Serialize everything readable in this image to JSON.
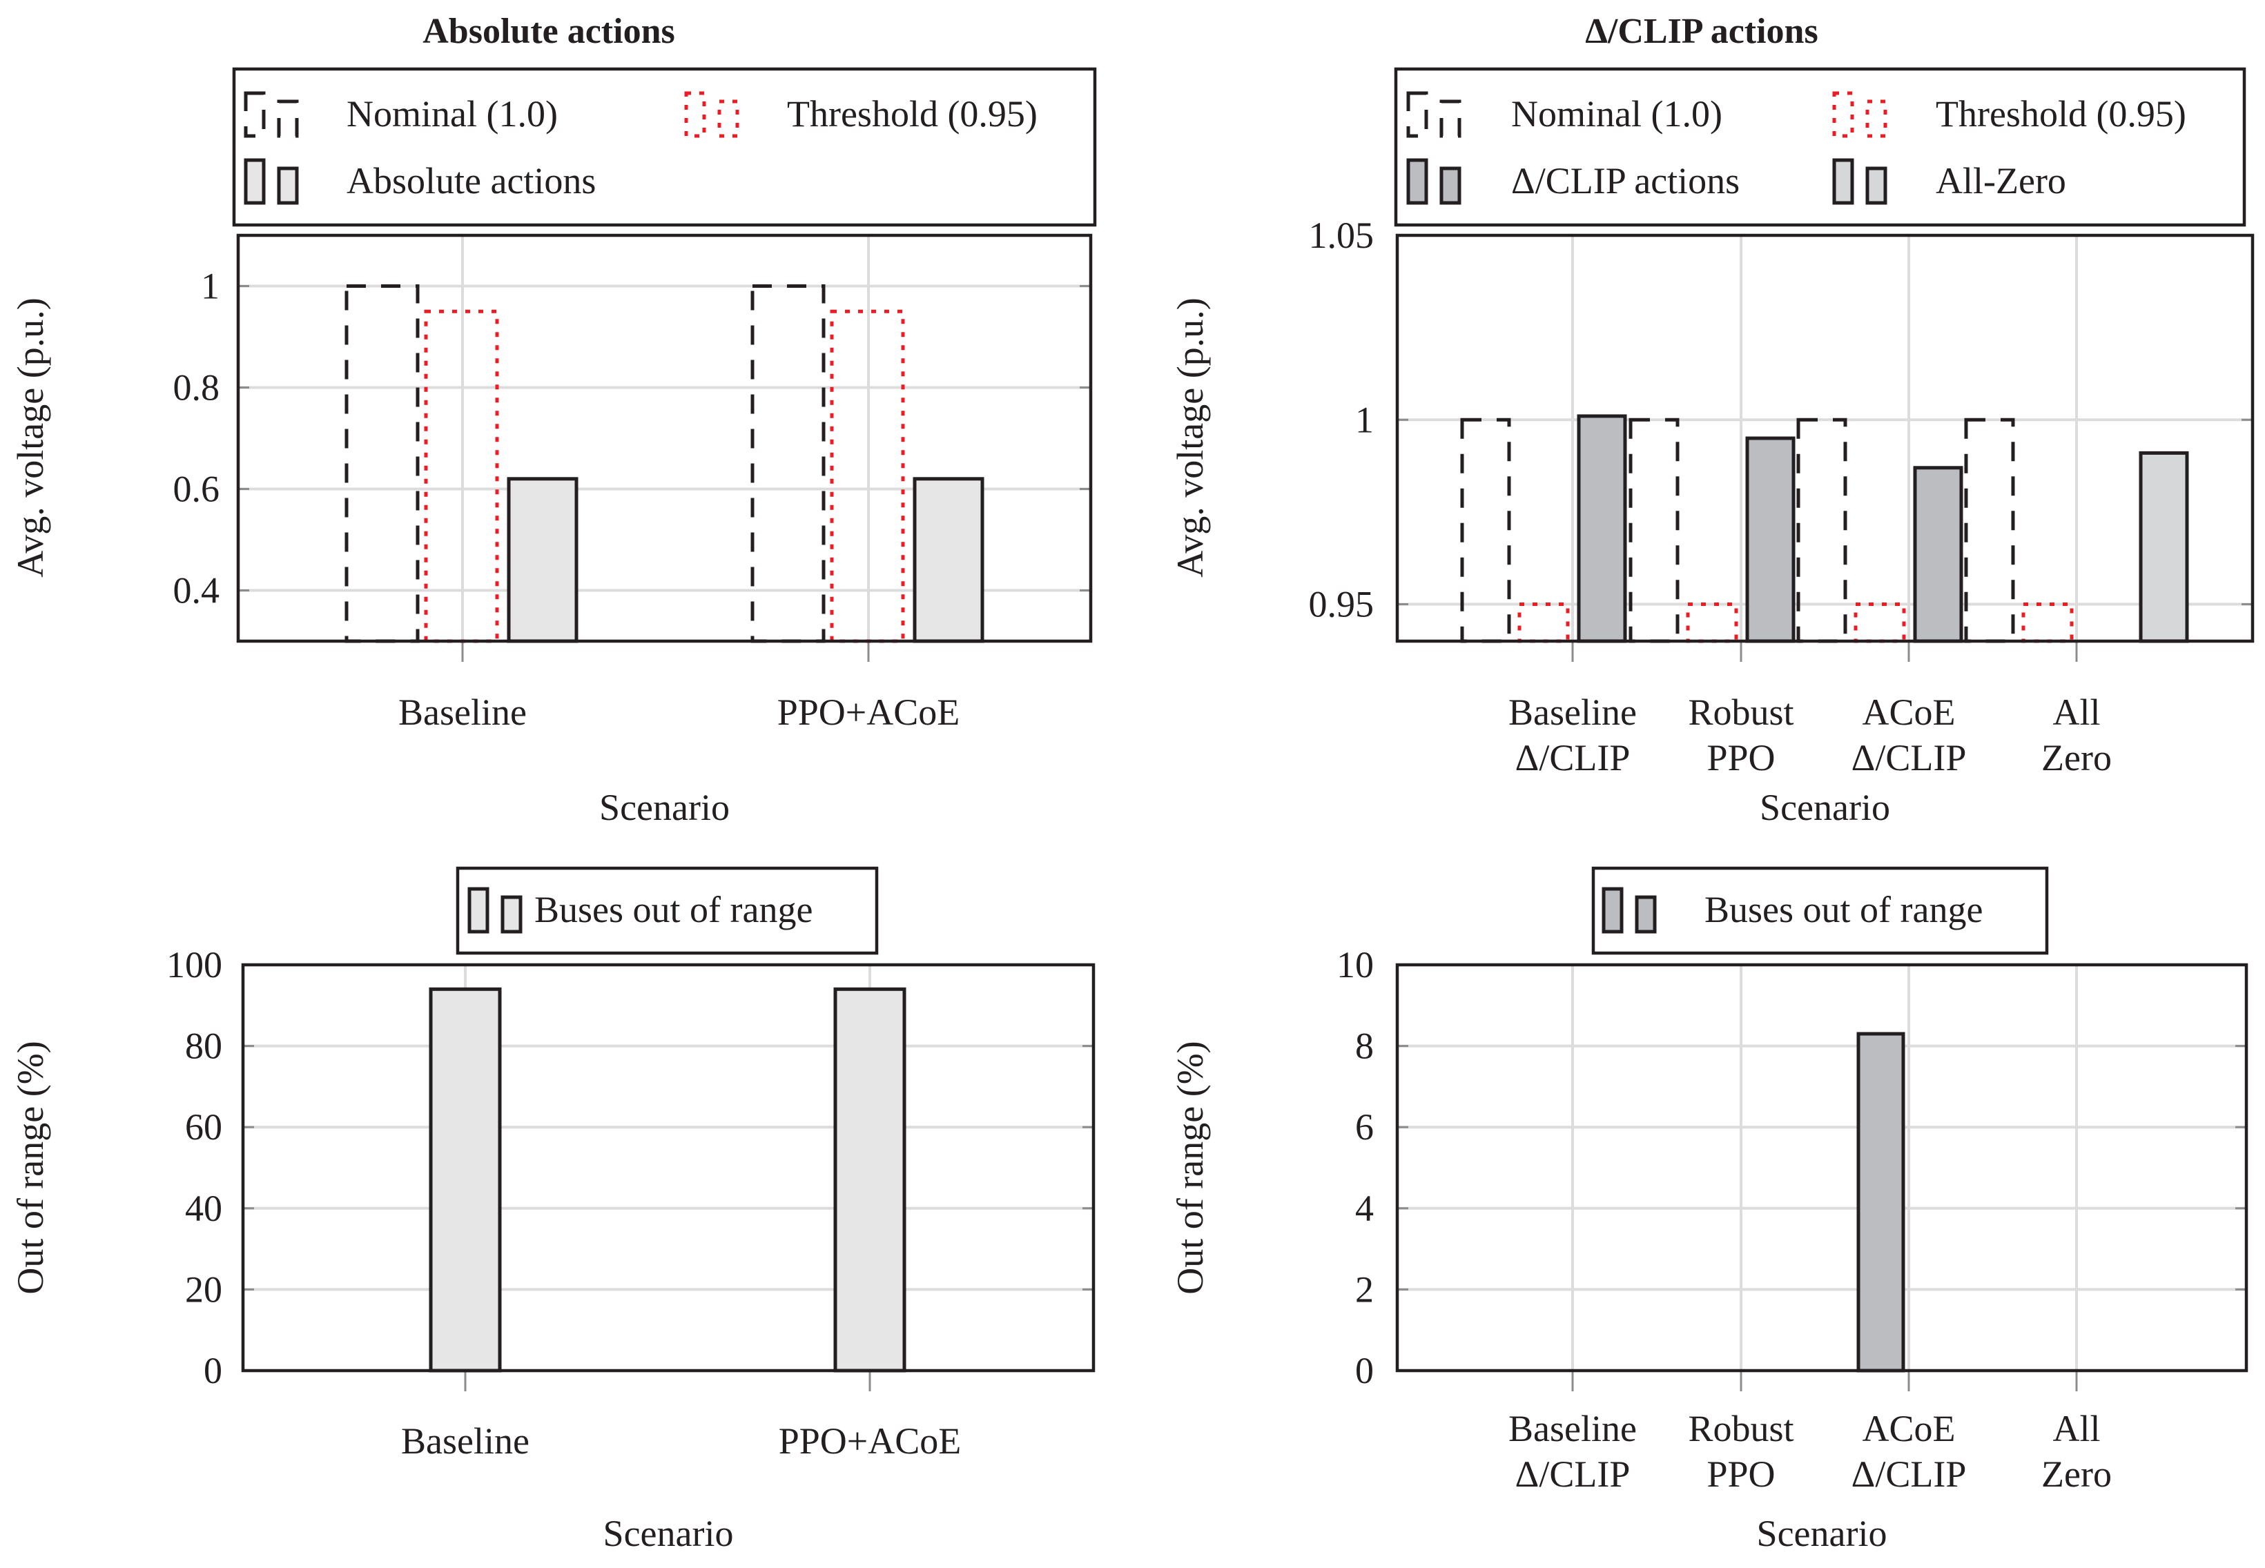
{
  "chart_data": [
    {
      "type": "bar",
      "title": "Absolute actions",
      "xlabel": "Scenario",
      "ylabel": "Avg. voltage (p.u.)",
      "ylim": [
        0.3,
        1.1
      ],
      "yticks": [
        0.4,
        0.6,
        0.8,
        1
      ],
      "ytick_labels": [
        "0.4",
        "0.6",
        "0.8",
        "1"
      ],
      "grid": true,
      "categories": [
        [
          "Baseline"
        ],
        [
          "PPO+ACoE"
        ]
      ],
      "legend_placement": "top",
      "series": [
        {
          "name": "Nominal (1.0)",
          "style": "dashed",
          "stroke": "#231f20",
          "fill": "none",
          "values": [
            1.0,
            1.0
          ]
        },
        {
          "name": "Threshold (0.95)",
          "style": "dotted",
          "stroke": "#ed1c24",
          "fill": "none",
          "values": [
            0.95,
            0.95
          ]
        },
        {
          "name": "Absolute actions",
          "style": "solid",
          "stroke": "#231f20",
          "fill": "#e6e6e6",
          "values": [
            0.62,
            0.62
          ]
        }
      ]
    },
    {
      "type": "bar",
      "title": "Δ/CLIP actions",
      "xlabel": "Scenario",
      "ylabel": "Avg. voltage (p.u.)",
      "ylim": [
        0.94,
        1.05
      ],
      "yticks": [
        0.95,
        1,
        1.05
      ],
      "ytick_labels": [
        "0.95",
        "1",
        "1.05"
      ],
      "grid": true,
      "categories": [
        [
          "Baseline",
          "Δ/CLIP"
        ],
        [
          "Robust",
          "PPO"
        ],
        [
          "ACoE",
          "Δ/CLIP"
        ],
        [
          "All",
          "Zero"
        ]
      ],
      "legend_placement": "top",
      "series": [
        {
          "name": "Nominal (1.0)",
          "style": "dashed",
          "stroke": "#231f20",
          "fill": "none",
          "values": [
            1.0,
            1.0,
            1.0,
            1.0
          ]
        },
        {
          "name": "Threshold (0.95)",
          "style": "dotted",
          "stroke": "#ed1c24",
          "fill": "none",
          "values": [
            0.95,
            0.95,
            0.95,
            0.95
          ]
        },
        {
          "name": "Δ/CLIP actions",
          "style": "solid",
          "stroke": "#231f20",
          "fill": "#bcbdc0",
          "values": [
            1.001,
            0.995,
            0.987,
            null
          ]
        },
        {
          "name": "All-Zero",
          "style": "solid",
          "stroke": "#231f20",
          "fill": "#d6d7d9",
          "values": [
            null,
            null,
            null,
            0.991
          ]
        }
      ]
    },
    {
      "type": "bar",
      "title": "",
      "xlabel": "Scenario",
      "ylabel": "Out of range (%)",
      "ylim": [
        0,
        100
      ],
      "yticks": [
        0,
        20,
        40,
        60,
        80,
        100
      ],
      "ytick_labels": [
        "0",
        "20",
        "40",
        "60",
        "80",
        "100"
      ],
      "grid": true,
      "categories": [
        [
          "Baseline"
        ],
        [
          "PPO+ACoE"
        ]
      ],
      "legend_placement": "top",
      "series": [
        {
          "name": "Buses out of range",
          "style": "solid",
          "stroke": "#231f20",
          "fill": "#e6e6e6",
          "values": [
            94,
            94
          ]
        }
      ]
    },
    {
      "type": "bar",
      "title": "",
      "xlabel": "Scenario",
      "ylabel": "Out of range (%)",
      "ylim": [
        0,
        10
      ],
      "yticks": [
        0,
        2,
        4,
        6,
        8,
        10
      ],
      "ytick_labels": [
        "0",
        "2",
        "4",
        "6",
        "8",
        "10"
      ],
      "grid": true,
      "categories": [
        [
          "Baseline",
          "Δ/CLIP"
        ],
        [
          "Robust",
          "PPO"
        ],
        [
          "ACoE",
          "Δ/CLIP"
        ],
        [
          "All",
          "Zero"
        ]
      ],
      "legend_placement": "top",
      "series": [
        {
          "name": "Buses out of range",
          "style": "solid",
          "stroke": "#231f20",
          "fill": "#bcbdc0",
          "values": [
            0,
            0,
            8.3,
            0
          ]
        }
      ]
    }
  ]
}
